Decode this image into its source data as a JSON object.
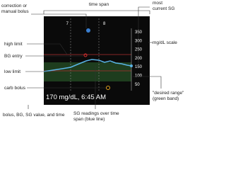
{
  "title": "time span",
  "left_labels": [
    "correction or\nmanual bolus",
    "high limit",
    "BG entry",
    "low limit",
    "carb bolus"
  ],
  "right_labels": [
    "most\ncurrent SG",
    "mg/dL scale",
    "\"desired range\"\n(green band)"
  ],
  "bottom_labels": [
    "bolus, BG, SG value, and time",
    "SG readings over time\nspan (blue line)"
  ],
  "screen": {
    "hours": [
      "7",
      "8"
    ],
    "scale": [
      "350",
      "300",
      "250",
      "200",
      "150",
      "100",
      "50"
    ],
    "status": "170 mg/dL, 6:45 AM"
  }
}
